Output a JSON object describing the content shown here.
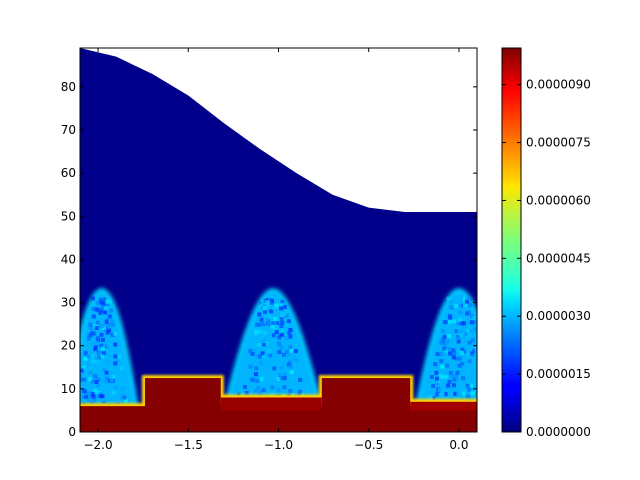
{
  "chart_data": {
    "type": "heatmap",
    "title": "",
    "xlabel": "",
    "ylabel": "",
    "xlim": [
      -2.1,
      0.1
    ],
    "ylim": [
      0,
      89
    ],
    "x_ticks": [
      {
        "value": -2.0,
        "label": "−2.0"
      },
      {
        "value": -1.5,
        "label": "−1.5"
      },
      {
        "value": -1.0,
        "label": "−1.0"
      },
      {
        "value": -0.5,
        "label": "−0.5"
      },
      {
        "value": 0.0,
        "label": "0.0"
      }
    ],
    "y_ticks": [
      {
        "value": 0,
        "label": "0"
      },
      {
        "value": 10,
        "label": "10"
      },
      {
        "value": 20,
        "label": "20"
      },
      {
        "value": 30,
        "label": "30"
      },
      {
        "value": 40,
        "label": "40"
      },
      {
        "value": 50,
        "label": "50"
      },
      {
        "value": 60,
        "label": "60"
      },
      {
        "value": 70,
        "label": "70"
      },
      {
        "value": 80,
        "label": "80"
      }
    ],
    "colormap": "jet",
    "colorbar": {
      "range": [
        0,
        9.95e-06
      ],
      "ticks": [
        {
          "value": 0.0,
          "label": "0.0000000"
        },
        {
          "value": 1.5e-06,
          "label": "0.0000015"
        },
        {
          "value": 3e-06,
          "label": "0.0000030"
        },
        {
          "value": 4.5e-06,
          "label": "0.0000045"
        },
        {
          "value": 6e-06,
          "label": "0.0000060"
        },
        {
          "value": 7.5e-06,
          "label": "0.0000075"
        },
        {
          "value": 9e-06,
          "label": "0.0000090"
        }
      ]
    },
    "data_boundary_top": {
      "x": [
        -2.1,
        -1.9,
        -1.7,
        -1.5,
        -1.3,
        -1.1,
        -0.9,
        -0.7,
        -0.5,
        -0.3,
        -0.1,
        0.1
      ],
      "y": [
        89,
        87,
        83,
        78,
        71.5,
        65.5,
        60,
        55,
        52,
        51,
        51,
        51
      ]
    },
    "regions": [
      {
        "x": [
          -2.1,
          0.1
        ],
        "y": [
          0,
          89
        ],
        "level": 1e-07
      },
      {
        "x": [
          -2.1,
          0.1
        ],
        "y": [
          0,
          6
        ],
        "level": 9.9e-06
      },
      {
        "x": [
          -1.74,
          -1.32
        ],
        "y": [
          5,
          12.5
        ],
        "level": 9.9e-06
      },
      {
        "x": [
          -0.76,
          -0.27
        ],
        "y": [
          5,
          12.5
        ],
        "level": 9.9e-06
      },
      {
        "x": [
          -1.32,
          -0.76
        ],
        "y": [
          5,
          8
        ],
        "level": 9.7e-06
      },
      {
        "x": [
          -0.27,
          0.1
        ],
        "y": [
          5,
          7
        ],
        "level": 9.6e-06
      }
    ],
    "lobes": [
      {
        "center": -1.98,
        "peak_y": 33,
        "half_width_top": 0.05,
        "half_width_base": 0.2,
        "level": 3e-06
      },
      {
        "center": -1.03,
        "peak_y": 33,
        "half_width_top": 0.06,
        "half_width_base": 0.27,
        "level": 3e-06
      },
      {
        "center": 0.0,
        "peak_y": 33,
        "half_width_top": 0.06,
        "half_width_base": 0.24,
        "level": 3e-06
      }
    ]
  }
}
